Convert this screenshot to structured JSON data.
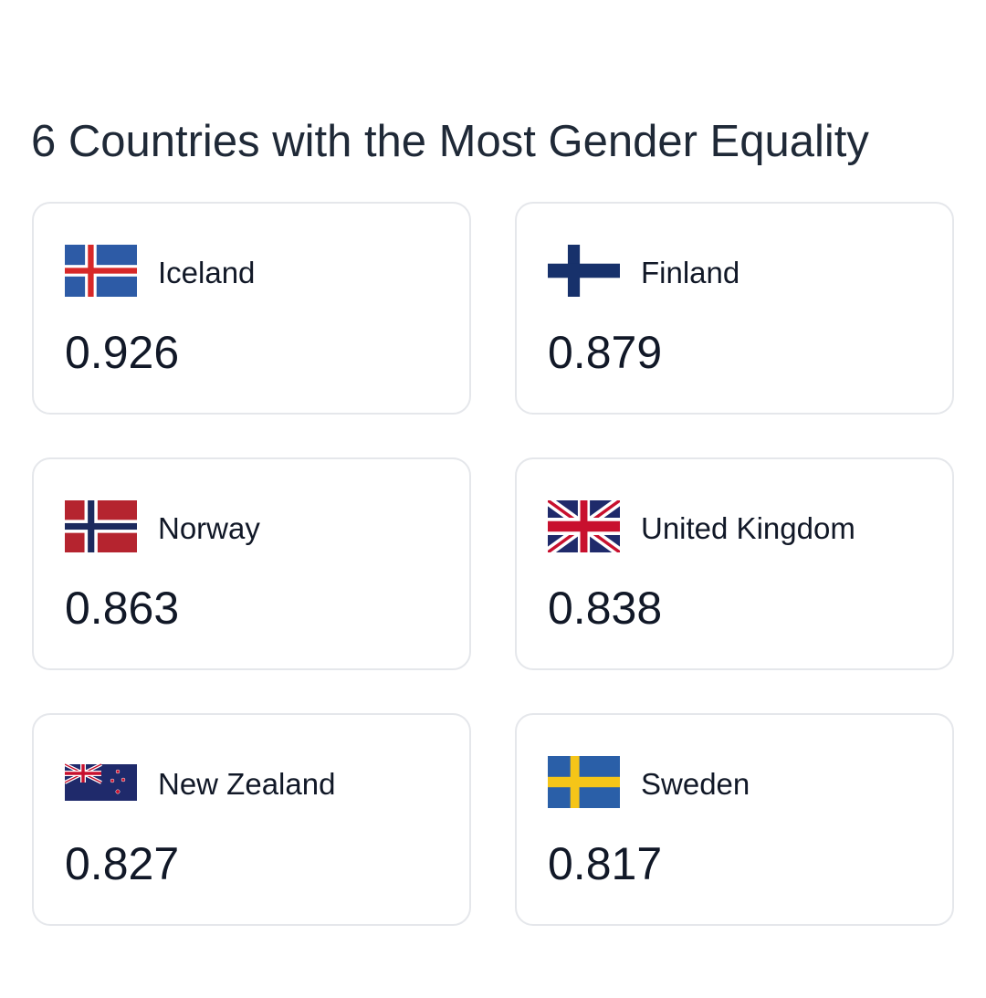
{
  "title": "6 Countries with the Most Gender Equality",
  "countries": [
    {
      "name": "Iceland",
      "score": "0.926",
      "flag": "iceland-flag-icon"
    },
    {
      "name": "Finland",
      "score": "0.879",
      "flag": "finland-flag-icon"
    },
    {
      "name": "Norway",
      "score": "0.863",
      "flag": "norway-flag-icon"
    },
    {
      "name": "United Kingdom",
      "score": "0.838",
      "flag": "united-kingdom-flag-icon"
    },
    {
      "name": "New Zealand",
      "score": "0.827",
      "flag": "new-zealand-flag-icon"
    },
    {
      "name": "Sweden",
      "score": "0.817",
      "flag": "sweden-flag-icon"
    }
  ],
  "colors": {
    "text": "#111827",
    "title": "#1f2937",
    "card_border": "#e5e7eb"
  }
}
